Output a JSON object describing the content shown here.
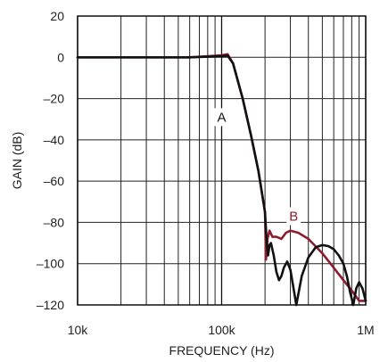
{
  "chart_data": {
    "type": "line",
    "title": "",
    "xlabel": "FREQUENCY (Hz)",
    "ylabel": "GAIN (dB)",
    "xscale": "log",
    "xlim": [
      10000,
      1000000
    ],
    "ylim": [
      -120,
      20
    ],
    "grid": true,
    "x_ticks": [
      {
        "value": 10000,
        "label": "10k"
      },
      {
        "value": 100000,
        "label": "100k"
      },
      {
        "value": 1000000,
        "label": "1M"
      }
    ],
    "y_ticks": [
      {
        "value": 20,
        "label": "20"
      },
      {
        "value": 0,
        "label": "0"
      },
      {
        "value": -20,
        "label": "–20"
      },
      {
        "value": -40,
        "label": "–40"
      },
      {
        "value": -60,
        "label": "–60"
      },
      {
        "value": -80,
        "label": "–80"
      },
      {
        "value": -100,
        "label": "–100"
      },
      {
        "value": -120,
        "label": "–120"
      }
    ],
    "series": [
      {
        "name": "A",
        "color": "#111111",
        "x": [
          10000,
          20000,
          40000,
          60000,
          80000,
          100000,
          110000,
          120000,
          140000,
          160000,
          180000,
          200000,
          205000,
          210000,
          215000,
          220000,
          230000,
          240000,
          250000,
          260000,
          270000,
          285000,
          300000,
          330000,
          360000,
          400000,
          450000,
          500000,
          550000,
          600000,
          650000,
          700000,
          740000,
          780000,
          820000,
          860000,
          900000,
          950000,
          1000000
        ],
        "y": [
          0,
          0,
          0,
          0,
          0.3,
          0.5,
          0.8,
          -3,
          -20,
          -38,
          -55,
          -75,
          -88,
          -96,
          -91,
          -90,
          -96,
          -104,
          -108,
          -106,
          -102,
          -99,
          -103,
          -120,
          -106,
          -97,
          -92,
          -91,
          -91.5,
          -93,
          -96,
          -100,
          -106,
          -114,
          -120,
          -112,
          -109,
          -112,
          -118
        ]
      },
      {
        "name": "B",
        "color": "#8c1c2e",
        "x": [
          10000,
          20000,
          40000,
          60000,
          80000,
          100000,
          110000,
          120000,
          140000,
          160000,
          180000,
          200000,
          203000,
          208000,
          215000,
          225000,
          240000,
          260000,
          280000,
          300000,
          340000,
          400000,
          500000,
          600000,
          700000,
          800000,
          900000,
          1000000
        ],
        "y": [
          0,
          0,
          0,
          0,
          0.5,
          1,
          1.5,
          -3,
          -20,
          -38,
          -55,
          -75,
          -98,
          -88,
          -84,
          -87,
          -87,
          -88,
          -85,
          -84,
          -85,
          -88,
          -95,
          -102,
          -108,
          -113,
          -118,
          -118
        ]
      }
    ],
    "annotations": [
      {
        "text": "A",
        "x": 100000,
        "y": -29,
        "color": "#111111"
      },
      {
        "text": "B",
        "x": 316000,
        "y": -77,
        "color": "#8c1c2e"
      }
    ]
  }
}
